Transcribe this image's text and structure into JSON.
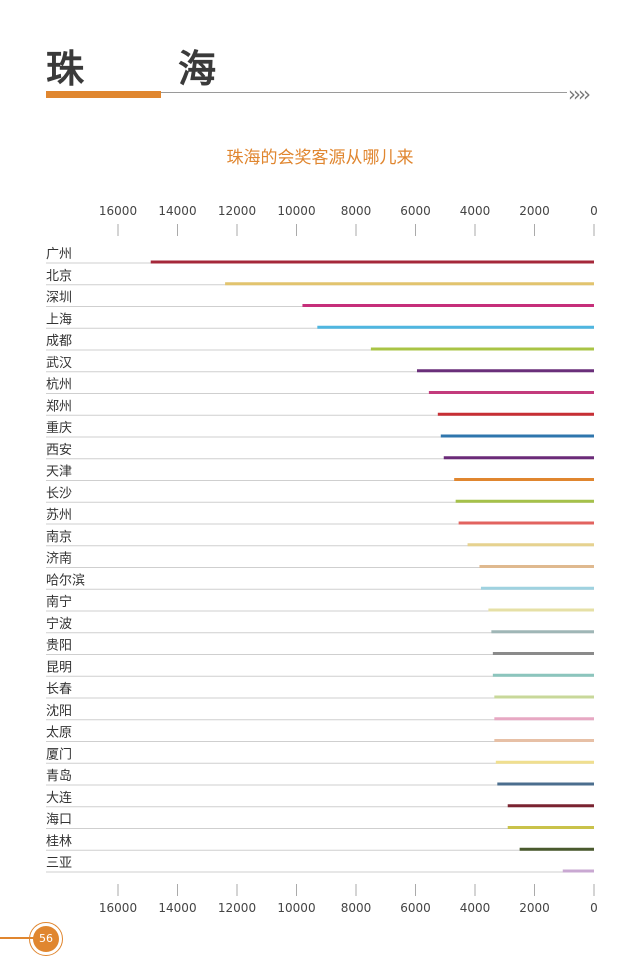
{
  "header": {
    "title": "珠　海",
    "chevrons": "››››"
  },
  "page_number": "56",
  "colors": {
    "accent": "#e0862f",
    "title_text": "#3a3a3a"
  },
  "chart_data": {
    "type": "bar",
    "orientation": "horizontal",
    "x_axis_reversed": true,
    "title": "珠海的会奖客源从哪儿来",
    "xlim": [
      0,
      16000
    ],
    "xticks": [
      16000,
      14000,
      12000,
      10000,
      8000,
      6000,
      4000,
      2000,
      0
    ],
    "categories": [
      "广州",
      "北京",
      "深圳",
      "上海",
      "成都",
      "武汉",
      "杭州",
      "郑州",
      "重庆",
      "西安",
      "天津",
      "长沙",
      "苏州",
      "南京",
      "济南",
      "哈尔滨",
      "南宁",
      "宁波",
      "贵阳",
      "昆明",
      "长春",
      "沈阳",
      "太原",
      "厦门",
      "青岛",
      "大连",
      "海口",
      "桂林",
      "三亚"
    ],
    "values": [
      14900,
      12400,
      9800,
      9300,
      7500,
      5950,
      5550,
      5250,
      5150,
      5050,
      4700,
      4650,
      4550,
      4250,
      3850,
      3800,
      3550,
      3450,
      3400,
      3400,
      3350,
      3350,
      3350,
      3300,
      3250,
      2900,
      2900,
      2500,
      1050
    ],
    "bar_colors": [
      "#a5283a",
      "#e2c46e",
      "#c62f7a",
      "#4fb6e0",
      "#a9c445",
      "#6a2f7a",
      "#c33b7c",
      "#c72f35",
      "#2f76ad",
      "#6b2b79",
      "#e0862f",
      "#a5c14a",
      "#e2635f",
      "#e6d28f",
      "#dfb98f",
      "#9fd2e0",
      "#e6e0a6",
      "#9fb6b6",
      "#8a8a8a",
      "#8cc5bd",
      "#c8d89a",
      "#e7a8c3",
      "#e7c0a6",
      "#f0df8f",
      "#4b6e8e",
      "#7a2330",
      "#c9c24a",
      "#4a5a2e",
      "#c9a8d2"
    ],
    "grid": false,
    "legend": "none"
  }
}
